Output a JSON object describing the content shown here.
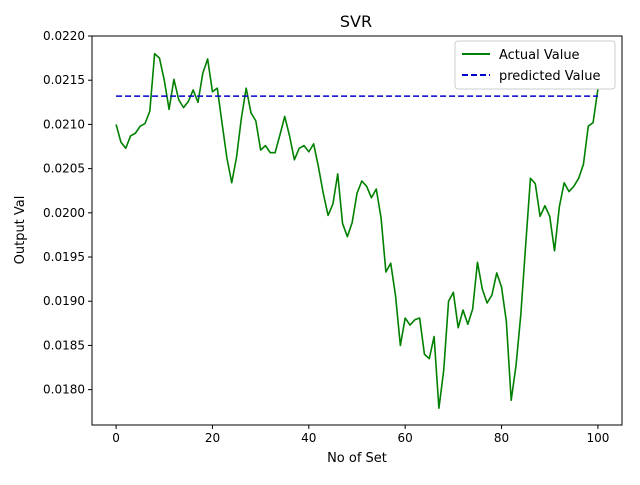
{
  "chart_data": {
    "type": "line",
    "title": "SVR",
    "xlabel": "No of Set",
    "ylabel": "Output Val",
    "xlim": [
      -5,
      105
    ],
    "ylim": [
      0.0176,
      0.022
    ],
    "xticks": [
      0,
      20,
      40,
      60,
      80,
      100
    ],
    "xtick_labels": [
      "0",
      "20",
      "40",
      "60",
      "80",
      "100"
    ],
    "yticks": [
      0.018,
      0.0185,
      0.019,
      0.0195,
      0.02,
      0.0205,
      0.021,
      0.0215,
      0.022
    ],
    "ytick_labels": [
      "0.0180",
      "0.0185",
      "0.0190",
      "0.0195",
      "0.0200",
      "0.0205",
      "0.0210",
      "0.0215",
      "0.0220"
    ],
    "grid": false,
    "legend_position": "upper right",
    "series": [
      {
        "name": "Actual Value",
        "color": "#008000",
        "style": "solid",
        "x": [
          0,
          1,
          2,
          3,
          4,
          5,
          6,
          7,
          8,
          9,
          10,
          11,
          12,
          13,
          14,
          15,
          16,
          17,
          18,
          19,
          20,
          21,
          22,
          23,
          24,
          25,
          26,
          27,
          28,
          29,
          30,
          31,
          32,
          33,
          34,
          35,
          36,
          37,
          38,
          39,
          40,
          41,
          42,
          43,
          44,
          45,
          46,
          47,
          48,
          49,
          50,
          51,
          52,
          53,
          54,
          55,
          56,
          57,
          58,
          59,
          60,
          61,
          62,
          63,
          64,
          65,
          66,
          67,
          68,
          69,
          70,
          71,
          72,
          73,
          74,
          75,
          76,
          77,
          78,
          79,
          80,
          81,
          82,
          83,
          84,
          85,
          86,
          87,
          88,
          89,
          90,
          91,
          92,
          93,
          94,
          95,
          96,
          97,
          98,
          99,
          100
        ],
        "y": [
          0.021,
          0.0208,
          0.02073,
          0.02087,
          0.0209,
          0.02098,
          0.02101,
          0.02115,
          0.0218,
          0.02175,
          0.0215,
          0.02117,
          0.02151,
          0.02128,
          0.02119,
          0.02126,
          0.02139,
          0.02125,
          0.02158,
          0.02174,
          0.02137,
          0.02141,
          0.02101,
          0.02062,
          0.02034,
          0.02063,
          0.02107,
          0.02141,
          0.02113,
          0.02104,
          0.02071,
          0.02076,
          0.02068,
          0.02068,
          0.02088,
          0.02109,
          0.02087,
          0.0206,
          0.02073,
          0.02076,
          0.02069,
          0.02078,
          0.02052,
          0.02022,
          0.01997,
          0.0201,
          0.02044,
          0.01988,
          0.01973,
          0.01989,
          0.02022,
          0.02036,
          0.0203,
          0.02017,
          0.02027,
          0.01994,
          0.01933,
          0.01943,
          0.01906,
          0.0185,
          0.01881,
          0.01873,
          0.01879,
          0.01881,
          0.0184,
          0.01835,
          0.0186,
          0.01779,
          0.01822,
          0.019,
          0.0191,
          0.0187,
          0.0189,
          0.01874,
          0.01891,
          0.01944,
          0.01914,
          0.01898,
          0.01907,
          0.01932,
          0.01916,
          0.01877,
          0.01788,
          0.01827,
          0.01885,
          0.01963,
          0.02039,
          0.02033,
          0.01996,
          0.02008,
          0.01996,
          0.01957,
          0.02007,
          0.02034,
          0.02024,
          0.0203,
          0.02039,
          0.02055,
          0.02098,
          0.02102,
          0.0214
        ]
      },
      {
        "name": "predicted Value",
        "color": "#0000cc",
        "style": "dashed",
        "x": [
          0,
          100
        ],
        "y": [
          0.02132,
          0.02132
        ]
      }
    ]
  }
}
